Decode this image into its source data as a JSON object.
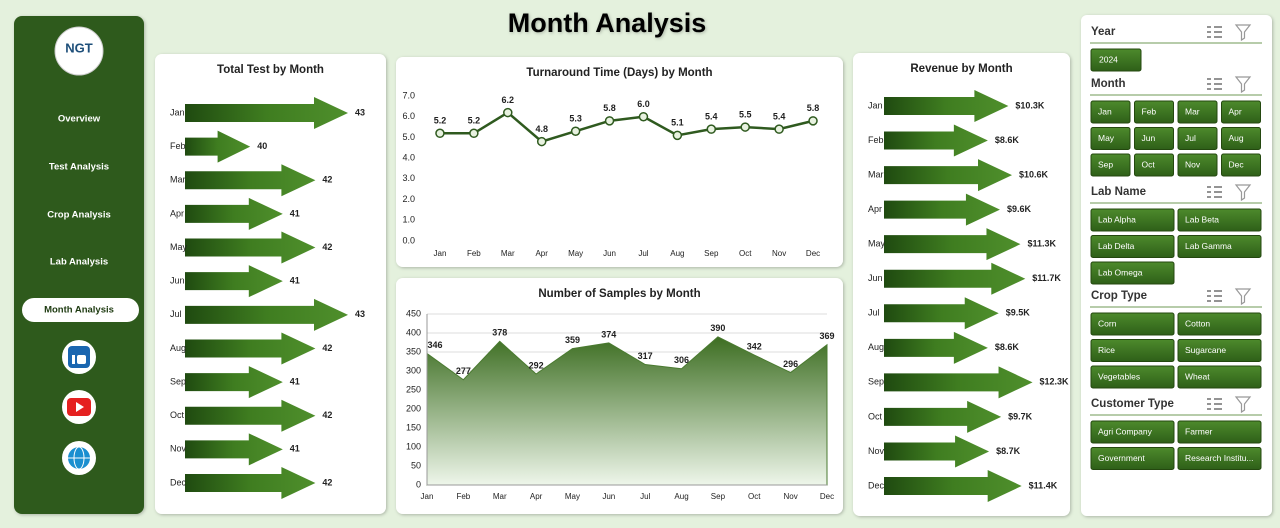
{
  "header": {
    "title": "Month Analysis"
  },
  "sidebar": {
    "logo": "NGT",
    "menu": [
      "Overview",
      "Test Analysis",
      "Crop Analysis",
      "Lab Analysis",
      "Month Analysis"
    ],
    "active": 4
  },
  "chart_data": [
    {
      "type": "bar",
      "orientation": "horizontal",
      "title": "Total Test by Month",
      "color": "#3d7a1e",
      "categories": [
        "Jan",
        "Feb",
        "Mar",
        "Apr",
        "May",
        "Jun",
        "Jul",
        "Aug",
        "Sep",
        "Oct",
        "Nov",
        "Dec"
      ],
      "values": [
        43,
        40,
        42,
        41,
        42,
        41,
        43,
        42,
        41,
        42,
        41,
        42
      ],
      "xlim": [
        38,
        43
      ]
    },
    {
      "type": "line",
      "title": "Turnaround Time (Days) by Month",
      "color": "#2f5a1f",
      "categories": [
        "Jan",
        "Feb",
        "Mar",
        "Apr",
        "May",
        "Jun",
        "Jul",
        "Aug",
        "Sep",
        "Oct",
        "Nov",
        "Dec"
      ],
      "values": [
        5.2,
        5.2,
        6.2,
        4.8,
        5.3,
        5.8,
        6.0,
        5.1,
        5.4,
        5.5,
        5.4,
        5.8
      ],
      "value_labels": [
        "5.2",
        "5.2",
        "6.2",
        "4.8",
        "5.3",
        "5.8",
        "6.0",
        "5.1",
        "5.4",
        "5.5",
        "5.4",
        "5.8"
      ],
      "ylim": [
        0,
        7
      ],
      "yticks": [
        {
          "value": 0,
          "label": "0.0"
        },
        {
          "value": 1,
          "label": "1.0"
        },
        {
          "value": 2,
          "label": "2.0"
        },
        {
          "value": 3,
          "label": "3.0"
        },
        {
          "value": 4,
          "label": "4.0"
        },
        {
          "value": 5,
          "label": "5.0"
        },
        {
          "value": 6,
          "label": "6.0"
        },
        {
          "value": 7,
          "label": "7.0"
        }
      ]
    },
    {
      "type": "area",
      "title": "Number of Samples by Month",
      "color": "#3d6e22",
      "grid": true,
      "categories": [
        "Jan",
        "Feb",
        "Mar",
        "Apr",
        "May",
        "Jun",
        "Jul",
        "Aug",
        "Sep",
        "Oct",
        "Nov",
        "Dec"
      ],
      "values": [
        346,
        277,
        378,
        292,
        359,
        374,
        317,
        306,
        390,
        342,
        296,
        369
      ],
      "ylim": [
        0,
        450
      ],
      "yticks": [
        0,
        50,
        100,
        150,
        200,
        250,
        300,
        350,
        400,
        450
      ]
    },
    {
      "type": "bar",
      "orientation": "horizontal",
      "title": "Revenue by Month",
      "color": "#3d7a1e",
      "categories": [
        "Jan",
        "Feb",
        "Mar",
        "Apr",
        "May",
        "Jun",
        "Jul",
        "Aug",
        "Sep",
        "Oct",
        "Nov",
        "Dec"
      ],
      "values": [
        10300,
        8600,
        10600,
        9600,
        11300,
        11700,
        9500,
        8600,
        12300,
        9700,
        8700,
        11400
      ],
      "value_labels": [
        "$10.3K",
        "$8.6K",
        "$10.6K",
        "$9.6K",
        "$11.3K",
        "$11.7K",
        "$9.5K",
        "$8.6K",
        "$12.3K",
        "$9.7K",
        "$8.7K",
        "$11.4K"
      ],
      "xlim": [
        0,
        13000
      ]
    }
  ],
  "slicers": [
    {
      "title": "Year",
      "columns": 1,
      "items": [
        "2024"
      ]
    },
    {
      "title": "Month",
      "columns": 4,
      "items": [
        "Jan",
        "Feb",
        "Mar",
        "Apr",
        "May",
        "Jun",
        "Jul",
        "Aug",
        "Sep",
        "Oct",
        "Nov",
        "Dec"
      ]
    },
    {
      "title": "Lab Name",
      "columns": 2,
      "items": [
        "Lab Alpha",
        "Lab Beta",
        "Lab Delta",
        "Lab Gamma",
        "Lab Omega"
      ]
    },
    {
      "title": "Crop Type",
      "columns": 2,
      "items": [
        "Corn",
        "Cotton",
        "Rice",
        "Sugarcane",
        "Vegetables",
        "Wheat"
      ]
    },
    {
      "title": "Customer Type",
      "columns": 2,
      "items": [
        "Agri Company",
        "Farmer",
        "Government",
        "Research Institu..."
      ]
    }
  ]
}
